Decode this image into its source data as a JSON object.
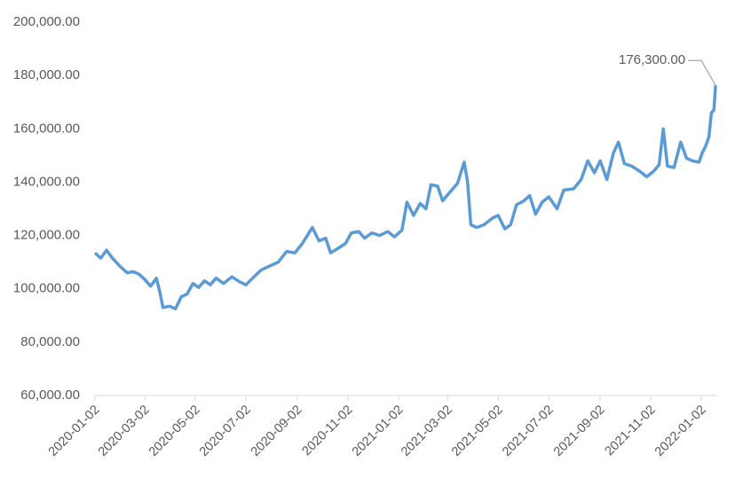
{
  "chart_data": {
    "type": "line",
    "x": [
      "2020-01-02",
      "2020-01-09",
      "2020-01-16",
      "2020-01-23",
      "2020-02-01",
      "2020-02-10",
      "2020-02-17",
      "2020-02-24",
      "2020-03-02",
      "2020-03-09",
      "2020-03-16",
      "2020-03-20",
      "2020-03-24",
      "2020-04-01",
      "2020-04-08",
      "2020-04-15",
      "2020-04-22",
      "2020-04-29",
      "2020-05-06",
      "2020-05-13",
      "2020-05-20",
      "2020-05-27",
      "2020-06-05",
      "2020-06-15",
      "2020-06-25",
      "2020-07-02",
      "2020-07-10",
      "2020-07-20",
      "2020-07-30",
      "2020-08-10",
      "2020-08-20",
      "2020-08-30",
      "2020-09-08",
      "2020-09-16",
      "2020-09-20",
      "2020-09-28",
      "2020-10-06",
      "2020-10-12",
      "2020-10-20",
      "2020-10-30",
      "2020-11-06",
      "2020-11-15",
      "2020-11-22",
      "2020-12-01",
      "2020-12-10",
      "2020-12-20",
      "2020-12-28",
      "2021-01-06",
      "2021-01-12",
      "2021-01-20",
      "2021-01-28",
      "2021-02-04",
      "2021-02-10",
      "2021-02-18",
      "2021-02-24",
      "2021-03-04",
      "2021-03-14",
      "2021-03-22",
      "2021-03-26",
      "2021-03-30",
      "2021-04-06",
      "2021-04-15",
      "2021-04-25",
      "2021-05-02",
      "2021-05-10",
      "2021-05-17",
      "2021-05-24",
      "2021-06-02",
      "2021-06-09",
      "2021-06-16",
      "2021-06-24",
      "2021-07-02",
      "2021-07-12",
      "2021-07-20",
      "2021-08-01",
      "2021-08-10",
      "2021-08-18",
      "2021-08-26",
      "2021-09-02",
      "2021-09-10",
      "2021-09-18",
      "2021-09-24",
      "2021-10-01",
      "2021-10-10",
      "2021-10-20",
      "2021-10-28",
      "2021-11-05",
      "2021-11-12",
      "2021-11-17",
      "2021-11-22",
      "2021-11-30",
      "2021-12-08",
      "2021-12-15",
      "2021-12-22",
      "2021-12-30",
      "2022-01-03",
      "2022-01-07",
      "2022-01-11",
      "2022-01-14",
      "2022-01-17",
      "2022-01-19"
    ],
    "series": [
      {
        "color": "#5b9bd5",
        "values": [
          113500,
          111500,
          114500,
          111500,
          108500,
          106000,
          106500,
          105500,
          103500,
          101000,
          104000,
          99000,
          93000,
          93500,
          92500,
          97000,
          98000,
          102000,
          100500,
          103000,
          101500,
          104000,
          102000,
          104500,
          102500,
          101500,
          104000,
          107000,
          108500,
          110000,
          114000,
          113500,
          117000,
          121000,
          123000,
          118000,
          119000,
          113500,
          115000,
          117000,
          121000,
          121500,
          119000,
          121000,
          120000,
          121500,
          119500,
          122000,
          132500,
          127500,
          132000,
          130000,
          139000,
          138500,
          133000,
          136000,
          139500,
          147500,
          140500,
          124000,
          123000,
          124000,
          126500,
          127500,
          122500,
          124000,
          131500,
          133000,
          135000,
          128000,
          132500,
          134500,
          130000,
          137000,
          137500,
          141000,
          148000,
          143500,
          148000,
          141000,
          151000,
          155000,
          147000,
          146000,
          144000,
          142000,
          144000,
          146500,
          160000,
          146000,
          145500,
          155000,
          149000,
          148000,
          147500,
          151000,
          153500,
          157000,
          166000,
          167000,
          176300
        ],
        "value_labels": [
          null,
          null,
          null,
          null,
          null,
          null,
          null,
          null,
          null,
          null,
          null,
          null,
          null,
          null,
          null,
          null,
          null,
          null,
          null,
          null,
          null,
          null,
          null,
          null,
          null,
          null,
          null,
          null,
          null,
          null,
          null,
          null,
          null,
          null,
          null,
          null,
          null,
          null,
          null,
          null,
          null,
          null,
          null,
          null,
          null,
          null,
          null,
          null,
          null,
          null,
          null,
          null,
          null,
          null,
          null,
          null,
          null,
          null,
          null,
          null,
          null,
          null,
          null,
          null,
          null,
          null,
          null,
          null,
          null,
          null,
          null,
          null,
          null,
          null,
          null,
          null,
          null,
          null,
          null,
          null,
          null,
          null,
          null,
          null,
          null,
          null,
          null,
          null,
          null,
          null,
          null,
          null,
          null,
          null,
          null,
          null,
          null,
          null,
          null,
          null,
          "176,300.00"
        ]
      }
    ],
    "xlim": [
      "2020-01-02",
      "2022-01-20"
    ],
    "xticks": [
      "2020-01-02",
      "2020-03-02",
      "2020-05-02",
      "2020-07-02",
      "2020-09-02",
      "2020-11-02",
      "2021-01-02",
      "2021-03-02",
      "2021-05-02",
      "2021-07-02",
      "2021-09-02",
      "2021-11-02",
      "2022-01-02"
    ],
    "ylim": [
      60000,
      200000
    ],
    "yticks": [
      {
        "value": 60000,
        "label": "60,000.00"
      },
      {
        "value": 80000,
        "label": "80,000.00"
      },
      {
        "value": 100000,
        "label": "100,000.00"
      },
      {
        "value": 120000,
        "label": "120,000.00"
      },
      {
        "value": 140000,
        "label": "140,000.00"
      },
      {
        "value": 160000,
        "label": "160,000.00"
      },
      {
        "value": 180000,
        "label": "180,000.00"
      },
      {
        "value": 200000,
        "label": "200,000.00"
      }
    ],
    "grid": false
  }
}
